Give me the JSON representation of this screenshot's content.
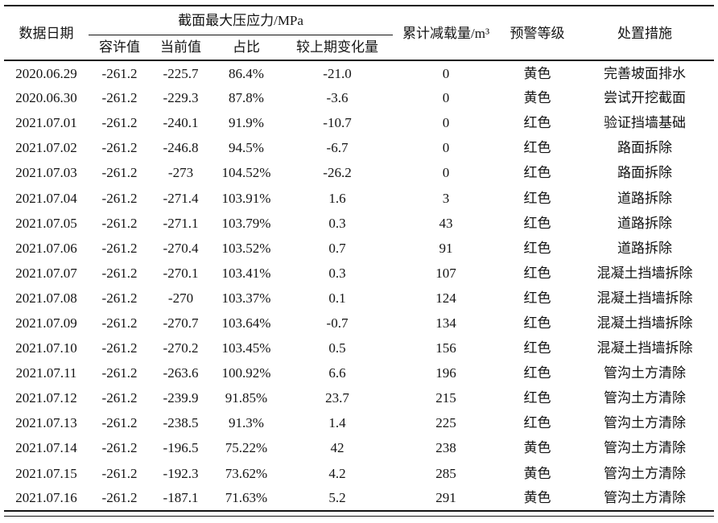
{
  "page": {
    "background_color": "#ffffff",
    "text_color": "#141414"
  },
  "table": {
    "headers": {
      "date": "数据日期",
      "stress_group": "截面最大压应力/MPa",
      "sub": {
        "allowable": "容许值",
        "current": "当前值",
        "ratio": "占比",
        "change": "较上期变化量"
      },
      "unload": "累计减载量/m³",
      "warning": "预警等级",
      "measure": "处置措施"
    },
    "rows": [
      [
        "2020.06.29",
        "-261.2",
        "-225.7",
        "86.4%",
        "-21.0",
        "0",
        "黄色",
        "完善坡面排水"
      ],
      [
        "2020.06.30",
        "-261.2",
        "-229.3",
        "87.8%",
        "-3.6",
        "0",
        "黄色",
        "尝试开挖截面"
      ],
      [
        "2021.07.01",
        "-261.2",
        "-240.1",
        "91.9%",
        "-10.7",
        "0",
        "红色",
        "验证挡墙基础"
      ],
      [
        "2021.07.02",
        "-261.2",
        "-246.8",
        "94.5%",
        "-6.7",
        "0",
        "红色",
        "路面拆除"
      ],
      [
        "2021.07.03",
        "-261.2",
        "-273",
        "104.52%",
        "-26.2",
        "0",
        "红色",
        "路面拆除"
      ],
      [
        "2021.07.04",
        "-261.2",
        "-271.4",
        "103.91%",
        "1.6",
        "3",
        "红色",
        "道路拆除"
      ],
      [
        "2021.07.05",
        "-261.2",
        "-271.1",
        "103.79%",
        "0.3",
        "43",
        "红色",
        "道路拆除"
      ],
      [
        "2021.07.06",
        "-261.2",
        "-270.4",
        "103.52%",
        "0.7",
        "91",
        "红色",
        "道路拆除"
      ],
      [
        "2021.07.07",
        "-261.2",
        "-270.1",
        "103.41%",
        "0.3",
        "107",
        "红色",
        "混凝土挡墙拆除"
      ],
      [
        "2021.07.08",
        "-261.2",
        "-270",
        "103.37%",
        "0.1",
        "124",
        "红色",
        "混凝土挡墙拆除"
      ],
      [
        "2021.07.09",
        "-261.2",
        "-270.7",
        "103.64%",
        "-0.7",
        "134",
        "红色",
        "混凝土挡墙拆除"
      ],
      [
        "2021.07.10",
        "-261.2",
        "-270.2",
        "103.45%",
        "0.5",
        "156",
        "红色",
        "混凝土挡墙拆除"
      ],
      [
        "2021.07.11",
        "-261.2",
        "-263.6",
        "100.92%",
        "6.6",
        "196",
        "红色",
        "管沟土方清除"
      ],
      [
        "2021.07.12",
        "-261.2",
        "-239.9",
        "91.85%",
        "23.7",
        "215",
        "红色",
        "管沟土方清除"
      ],
      [
        "2021.07.13",
        "-261.2",
        "-238.5",
        "91.3%",
        "1.4",
        "225",
        "红色",
        "管沟土方清除"
      ],
      [
        "2021.07.14",
        "-261.2",
        "-196.5",
        "75.22%",
        "42",
        "238",
        "黄色",
        "管沟土方清除"
      ],
      [
        "2021.07.15",
        "-261.2",
        "-192.3",
        "73.62%",
        "4.2",
        "285",
        "黄色",
        "管沟土方清除"
      ],
      [
        "2021.07.16",
        "-261.2",
        "-187.1",
        "71.63%",
        "5.2",
        "291",
        "黄色",
        "管沟土方清除"
      ]
    ]
  }
}
